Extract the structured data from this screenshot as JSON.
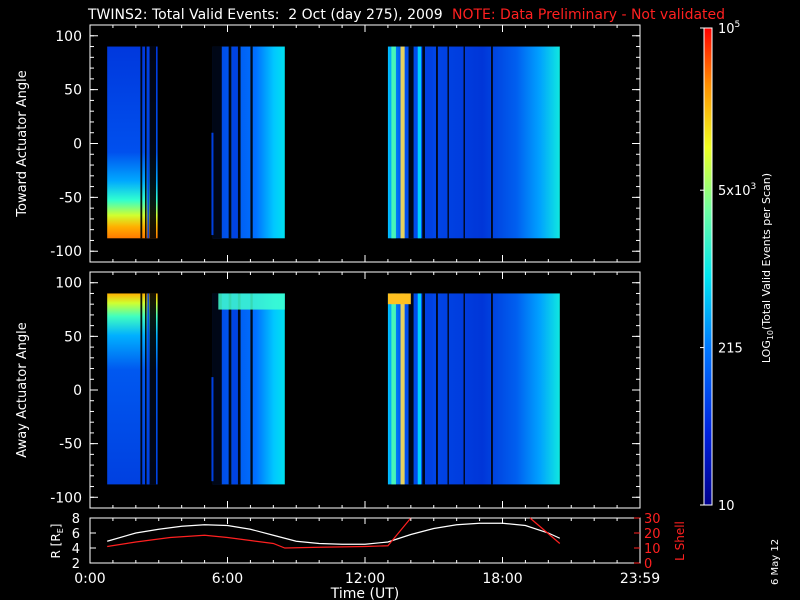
{
  "header": {
    "title": "TWINS2: Total Valid Events:  2 Oct (day 275), 2009",
    "note": "NOTE: Data Preliminary - Not validated"
  },
  "side_date": "6 May 12",
  "colors": {
    "background": "#000000",
    "note": "#ff2020",
    "r_line": "#ffffff",
    "lshell_line": "#ff2020"
  },
  "chart_data": [
    {
      "type": "heatmap",
      "title": "",
      "ylabel": "Toward Actuator Angle",
      "xlim": [
        0,
        24
      ],
      "ylim": [
        -110,
        110
      ],
      "yticks": [
        100,
        50,
        0,
        -50,
        -100
      ],
      "data_range_deg": [
        -88,
        90
      ],
      "data_hours_segments": [
        [
          0.75,
          2.95
        ],
        [
          5.35,
          8.5
        ],
        [
          13.0,
          20.5
        ]
      ],
      "description_of_values": "log counts per scan, mostly low-mid blue with high values near -80 deg during first segment"
    },
    {
      "type": "heatmap",
      "title": "",
      "ylabel": "Away Actuator Angle",
      "xlim": [
        0,
        24
      ],
      "ylim": [
        -110,
        110
      ],
      "yticks": [
        100,
        50,
        0,
        -50,
        -100
      ],
      "data_range_deg": [
        -88,
        90
      ],
      "data_hours_segments": [
        [
          0.75,
          2.95
        ],
        [
          5.35,
          8.5
        ],
        [
          13.0,
          20.5
        ]
      ]
    },
    {
      "type": "line",
      "ylabel": "R [R",
      "ylabel_sub": "E",
      "ylabel_right": "L Shell",
      "ylim": [
        2,
        8
      ],
      "yticks": [
        2,
        4,
        6,
        8
      ],
      "ylim_right": [
        0,
        30
      ],
      "yticks_right": [
        0,
        10,
        20,
        30
      ],
      "xlim": [
        0,
        24
      ],
      "xticks": [
        "0:00",
        "6:00",
        "12:00",
        "18:00",
        "23:59"
      ],
      "xlabel": "Time (UT)",
      "series": [
        {
          "name": "R",
          "x": [
            0.75,
            2,
            3,
            4,
            5,
            6,
            7,
            8,
            9,
            10,
            11,
            12,
            13,
            14,
            15,
            16,
            17,
            18,
            19,
            20,
            20.5
          ],
          "y": [
            4.9,
            6.0,
            6.5,
            6.9,
            7.1,
            7.0,
            6.5,
            5.7,
            4.9,
            4.6,
            4.5,
            4.5,
            4.8,
            5.8,
            6.6,
            7.1,
            7.3,
            7.3,
            7.0,
            6.0,
            5.3
          ]
        },
        {
          "name": "L Shell",
          "x": [
            0.75,
            2,
            3.5,
            5,
            6,
            7,
            8,
            8.5,
            10,
            12,
            13,
            13.9,
            19.2,
            20.5
          ],
          "y": [
            11,
            14,
            17,
            18.5,
            17,
            15,
            13,
            10,
            10.5,
            11,
            11.5,
            22,
            20,
            13
          ]
        }
      ]
    }
  ],
  "colorbar": {
    "label_main": "LOG",
    "label_sub": "10",
    "label_rest": "(Total Valid Events per Scan)",
    "ticks": [
      {
        "base": "10",
        "exp": "5",
        "frac": 1.0
      },
      {
        "base": "5x10",
        "exp": "3",
        "frac": 0.66
      },
      {
        "base": "215",
        "exp": "",
        "frac": 0.33
      },
      {
        "base": "10",
        "exp": "",
        "frac": 0.0
      }
    ]
  }
}
